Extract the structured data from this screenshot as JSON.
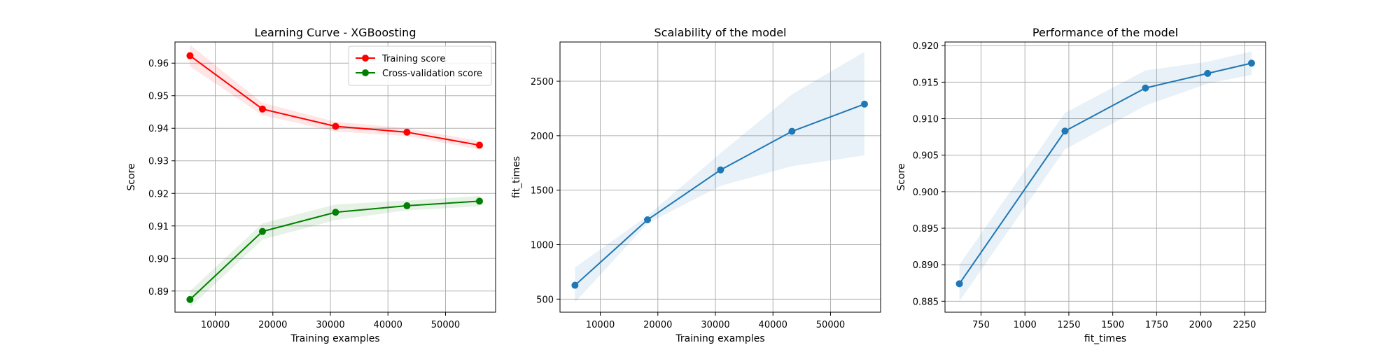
{
  "figure": {
    "colors": {
      "training": "#ff0000",
      "cv": "#008000",
      "blue": "#1f77b4",
      "grid": "#b0b0b0",
      "frame": "#000000"
    }
  },
  "chart_data": [
    {
      "type": "line",
      "title": "Learning Curve - XGBoosting",
      "xlabel": "Training examples",
      "ylabel": "Score",
      "xlim": [
        3000,
        58700
      ],
      "ylim": [
        0.8835,
        0.9665
      ],
      "xticks": [
        10000,
        20000,
        30000,
        40000,
        50000
      ],
      "xtick_labels": [
        "10000",
        "20000",
        "30000",
        "40000",
        "50000"
      ],
      "yticks": [
        0.89,
        0.9,
        0.91,
        0.92,
        0.93,
        0.94,
        0.95,
        0.96
      ],
      "ytick_labels": [
        "0.89",
        "0.90",
        "0.91",
        "0.92",
        "0.93",
        "0.94",
        "0.95",
        "0.96"
      ],
      "grid": true,
      "legend": "top-right",
      "x": [
        5600,
        18200,
        30900,
        43300,
        55900
      ],
      "series": [
        {
          "name": "Training score",
          "color": "#ff0000",
          "values": [
            0.9623,
            0.9459,
            0.9406,
            0.9388,
            0.9348
          ],
          "band_low": [
            0.959,
            0.944,
            0.939,
            0.9376,
            0.9335
          ],
          "band_high": [
            0.9656,
            0.9478,
            0.942,
            0.94,
            0.9361
          ]
        },
        {
          "name": "Cross-validation score",
          "color": "#008000",
          "values": [
            0.8874,
            0.9083,
            0.9142,
            0.9162,
            0.9176
          ],
          "band_low": [
            0.885,
            0.9058,
            0.9118,
            0.9148,
            0.916
          ],
          "band_high": [
            0.89,
            0.9108,
            0.9166,
            0.9178,
            0.9192
          ]
        }
      ]
    },
    {
      "type": "line",
      "title": "Scalability of the model",
      "xlabel": "Training examples",
      "ylabel": "fit_times",
      "xlim": [
        3000,
        58700
      ],
      "ylim": [
        380,
        2860
      ],
      "xticks": [
        10000,
        20000,
        30000,
        40000,
        50000
      ],
      "xtick_labels": [
        "10000",
        "20000",
        "30000",
        "40000",
        "50000"
      ],
      "yticks": [
        500,
        1000,
        1500,
        2000,
        2500
      ],
      "ytick_labels": [
        "500",
        "1000",
        "1500",
        "2000",
        "2500"
      ],
      "grid": true,
      "x": [
        5600,
        18200,
        30900,
        43300,
        55900
      ],
      "series": [
        {
          "color": "#1f77b4",
          "values": [
            627,
            1228,
            1686,
            2040,
            2290
          ],
          "band_low": [
            470,
            1195,
            1540,
            1720,
            1820
          ],
          "band_high": [
            790,
            1265,
            1840,
            2380,
            2770
          ]
        }
      ]
    },
    {
      "type": "line",
      "title": "Performance of the model",
      "xlabel": "fit_times",
      "ylabel": "Score",
      "xlim": [
        545,
        2370
      ],
      "ylim": [
        0.8835,
        0.9205
      ],
      "xticks": [
        750,
        1000,
        1250,
        1500,
        1750,
        2000,
        2250
      ],
      "xtick_labels": [
        "750",
        "1000",
        "1250",
        "1500",
        "1750",
        "2000",
        "2250"
      ],
      "yticks": [
        0.885,
        0.89,
        0.895,
        0.9,
        0.905,
        0.91,
        0.915,
        0.92
      ],
      "ytick_labels": [
        "0.885",
        "0.890",
        "0.895",
        "0.900",
        "0.905",
        "0.910",
        "0.915",
        "0.920"
      ],
      "grid": true,
      "x": [
        627,
        1228,
        1686,
        2040,
        2290
      ],
      "series": [
        {
          "color": "#1f77b4",
          "values": [
            0.8874,
            0.9083,
            0.9142,
            0.9162,
            0.9176
          ],
          "band_low": [
            0.885,
            0.9058,
            0.9118,
            0.9148,
            0.916
          ],
          "band_high": [
            0.89,
            0.9108,
            0.9166,
            0.9178,
            0.9192
          ]
        }
      ]
    }
  ]
}
